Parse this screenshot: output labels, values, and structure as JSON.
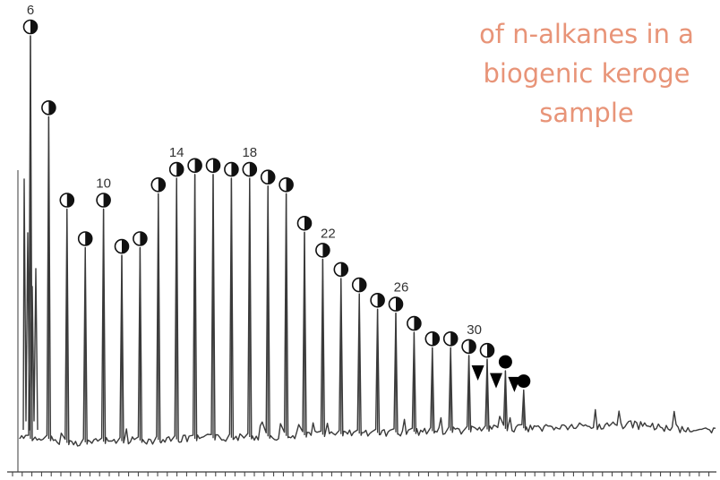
{
  "title_lines": [
    "of n-alkanes in a",
    "biogenic keroge",
    "sample"
  ],
  "colors": {
    "trace": "#3a3a3a",
    "title": "#e89478",
    "marker_half": "#111111",
    "marker_full": "#000000"
  },
  "chart_data": {
    "type": "line",
    "title": "of n-alkanes in a biogenic keroge sample",
    "xlabel": "",
    "ylabel": "",
    "grid": false,
    "ylim": [
      0,
      100
    ],
    "carbon_labels": [
      {
        "carbon": 6,
        "text": "6"
      },
      {
        "carbon": 10,
        "text": "10"
      },
      {
        "carbon": 14,
        "text": "14"
      },
      {
        "carbon": 18,
        "text": "18"
      },
      {
        "carbon": 22,
        "text": "22"
      },
      {
        "carbon": 26,
        "text": "26"
      },
      {
        "carbon": 30,
        "text": "30"
      }
    ],
    "peaks": [
      {
        "carbon": 6,
        "height": 100,
        "marker": "half"
      },
      {
        "carbon": 7,
        "height": 79,
        "marker": "half"
      },
      {
        "carbon": 8,
        "height": 55,
        "marker": "half"
      },
      {
        "carbon": 9,
        "height": 45,
        "marker": "half"
      },
      {
        "carbon": 10,
        "height": 55,
        "marker": "half"
      },
      {
        "carbon": 11,
        "height": 43,
        "marker": "half"
      },
      {
        "carbon": 12,
        "height": 45,
        "marker": "half"
      },
      {
        "carbon": 13,
        "height": 59,
        "marker": "half"
      },
      {
        "carbon": 14,
        "height": 63,
        "marker": "half"
      },
      {
        "carbon": 15,
        "height": 64,
        "marker": "half"
      },
      {
        "carbon": 16,
        "height": 64,
        "marker": "half"
      },
      {
        "carbon": 17,
        "height": 63,
        "marker": "half"
      },
      {
        "carbon": 18,
        "height": 63,
        "marker": "half"
      },
      {
        "carbon": 19,
        "height": 61,
        "marker": "half"
      },
      {
        "carbon": 20,
        "height": 59,
        "marker": "half"
      },
      {
        "carbon": 21,
        "height": 49,
        "marker": "half"
      },
      {
        "carbon": 22,
        "height": 42,
        "marker": "half"
      },
      {
        "carbon": 23,
        "height": 37,
        "marker": "half"
      },
      {
        "carbon": 24,
        "height": 33,
        "marker": "half"
      },
      {
        "carbon": 25,
        "height": 29,
        "marker": "half"
      },
      {
        "carbon": 26,
        "height": 28,
        "marker": "half"
      },
      {
        "carbon": 27,
        "height": 23,
        "marker": "half"
      },
      {
        "carbon": 28,
        "height": 19,
        "marker": "half"
      },
      {
        "carbon": 29,
        "height": 19,
        "marker": "half"
      },
      {
        "carbon": 30,
        "height": 17,
        "marker": "half"
      },
      {
        "carbon": 31,
        "height": 16,
        "marker": "half"
      },
      {
        "carbon": 32,
        "height": 13,
        "marker": "full"
      },
      {
        "carbon": 33,
        "height": 8,
        "marker": "full"
      }
    ],
    "secondary_markers": [
      {
        "carbon": 30,
        "height": 10,
        "marker": "triangle"
      },
      {
        "carbon": 31,
        "height": 8,
        "marker": "triangle"
      },
      {
        "carbon": 32,
        "height": 7,
        "marker": "triangle"
      }
    ]
  }
}
